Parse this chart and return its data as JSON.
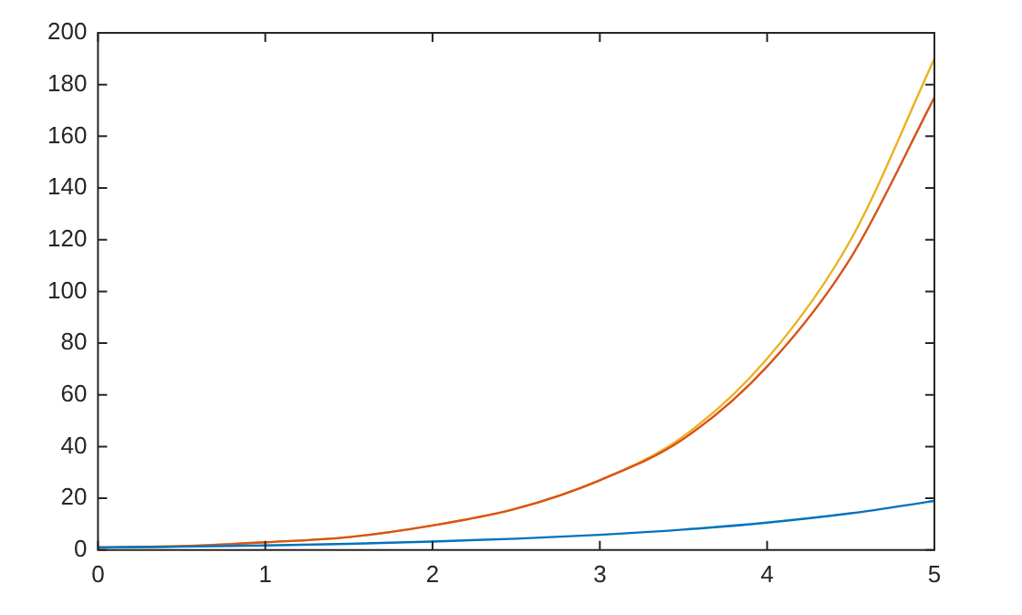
{
  "chart_data": {
    "type": "line",
    "x": [
      0,
      0.5,
      1,
      1.5,
      2,
      2.5,
      3,
      3.5,
      4,
      4.5,
      5
    ],
    "series": [
      {
        "color": "#0072bd",
        "values": [
          1,
          1.3,
          1.8,
          2.4,
          3.3,
          4.4,
          5.9,
          7.9,
          10.6,
          14.2,
          19
        ]
      },
      {
        "color": "#d95319",
        "values": [
          1,
          1.5,
          3,
          5,
          9.5,
          16,
          27,
          43,
          71,
          113,
          175
        ]
      },
      {
        "color": "#edb120",
        "values": [
          1,
          1.5,
          3,
          5,
          9.5,
          16,
          27,
          44,
          74,
          120,
          190
        ]
      }
    ],
    "xlim": [
      0,
      5
    ],
    "xticks": [
      0,
      1,
      2,
      3,
      4,
      5
    ],
    "ylim": [
      0,
      200
    ],
    "yticks": [
      0,
      20,
      40,
      60,
      80,
      100,
      120,
      140,
      160,
      180,
      200
    ],
    "grid": false,
    "legend": false,
    "marker": "none",
    "line_style": "solid"
  }
}
